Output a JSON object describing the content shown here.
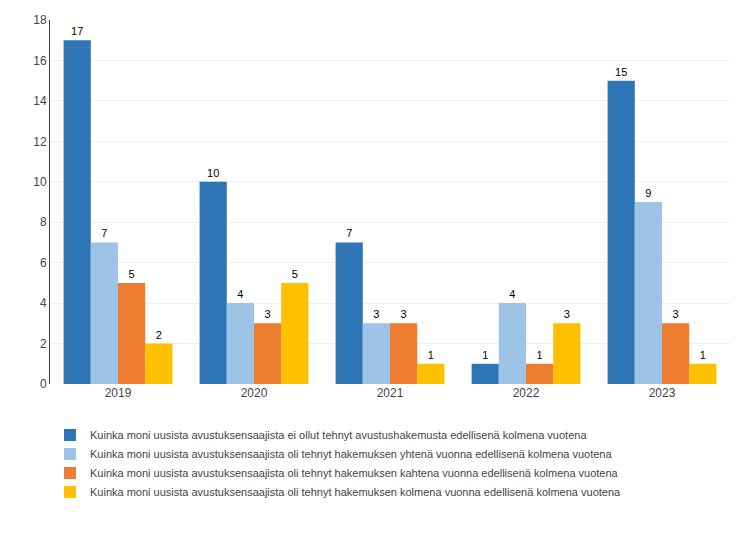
{
  "chart_data": {
    "type": "bar",
    "categories": [
      "2019",
      "2020",
      "2021",
      "2022",
      "2023"
    ],
    "series": [
      {
        "name": "Kuinka moni uusista avustuksensaajista ei ollut tehnyt avustushakemusta edellisenä kolmena vuotena",
        "color": "#2E75B6",
        "values": [
          17,
          10,
          7,
          1,
          15
        ]
      },
      {
        "name": "Kuinka moni uusista avustuksensaajista oli tehnyt hakemuksen yhtenä vuonna edellisenä kolmena vuotena",
        "color": "#9DC3E6",
        "values": [
          7,
          4,
          3,
          4,
          9
        ]
      },
      {
        "name": "Kuinka moni uusista avustuksensaajista oli tehnyt hakemuksen kahtena vuonna edellisenä kolmena vuotena",
        "color": "#ED7D31",
        "values": [
          5,
          3,
          3,
          1,
          3
        ]
      },
      {
        "name": "Kuinka moni uusista avustuksensaajista oli tehnyt hakemuksen kolmena vuonna edellisenä kolmena vuotena",
        "color": "#FFC000",
        "values": [
          2,
          5,
          1,
          3,
          1
        ]
      }
    ],
    "ylim": [
      0,
      18
    ],
    "yticks": [
      0,
      2,
      4,
      6,
      8,
      10,
      12,
      14,
      16,
      18
    ],
    "grid": true,
    "legend": "bottom",
    "data_labels": true
  }
}
